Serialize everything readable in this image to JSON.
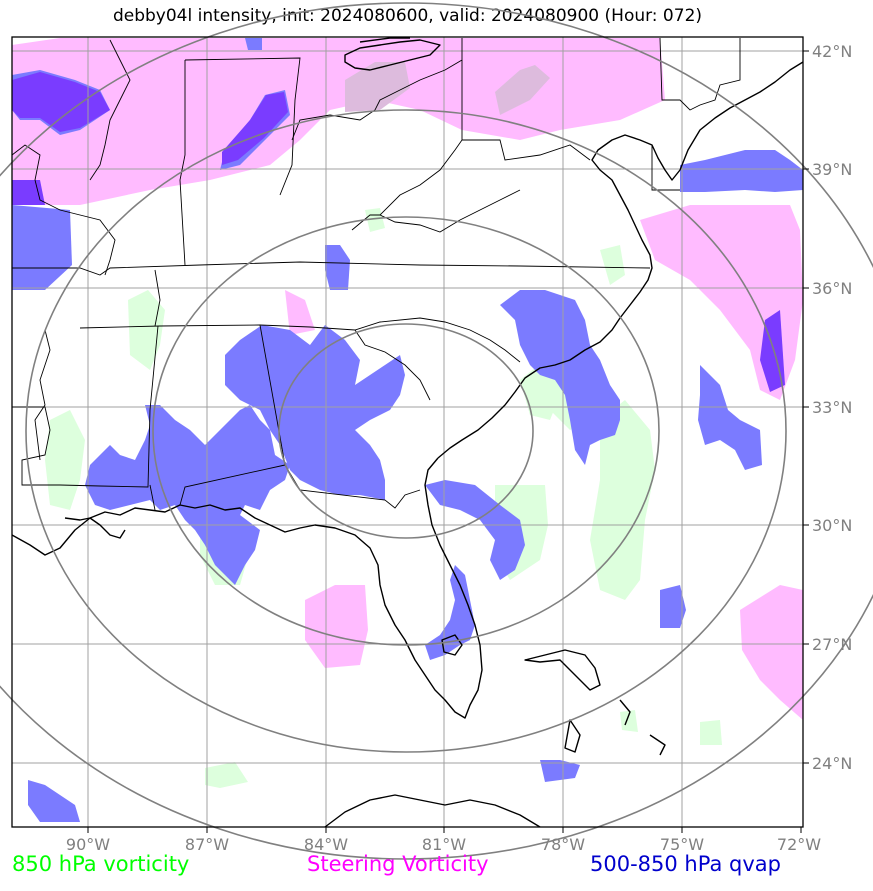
{
  "title": "debby04l intensity, init: 2024080600, valid: 2024080900 (Hour: 072)",
  "lon_labels": [
    "90°W",
    "87°W",
    "84°W",
    "81°W",
    "78°W",
    "75°W",
    "72°W"
  ],
  "lat_labels": [
    "42°N",
    "39°N",
    "36°N",
    "33°N",
    "30°N",
    "27°N",
    "24°N"
  ],
  "extent": {
    "lon_min": -92,
    "lon_max": -72,
    "lat_min": 22.5,
    "lat_max": 42.5
  },
  "center": {
    "lon": -82,
    "lat": 32.4
  },
  "legend": [
    {
      "label": "850 hPa vorticity",
      "color": "#00ff00"
    },
    {
      "label": "Steering Vorticity",
      "color": "#ff00ff"
    },
    {
      "label": "500-850 hPa qvap",
      "color": "#0000cc"
    }
  ],
  "colors": {
    "vort850": "#ddffdd",
    "steering": "#ffbbff",
    "qvap": "#7b7bff",
    "qvap_dark": "#7a3cff",
    "grid": "#a0a0a0",
    "rings": "#808080"
  }
}
